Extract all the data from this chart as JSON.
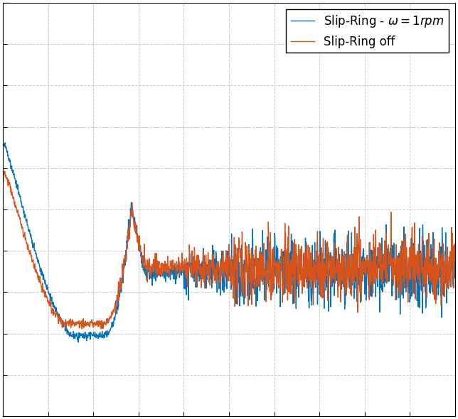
{
  "line1_color": "#0072BD",
  "line2_color": "#D95319",
  "line1_label": "Slip-Ring - $\\omega = 1rpm$",
  "line2_label": "Slip-Ring off",
  "background_color": "#ffffff",
  "grid_color": "#b0b0b0",
  "legend_fontsize": 12,
  "line_width": 1.0,
  "ylim": [
    0.0,
    1.0
  ],
  "figsize": [
    6.44,
    5.9
  ],
  "dpi": 100
}
